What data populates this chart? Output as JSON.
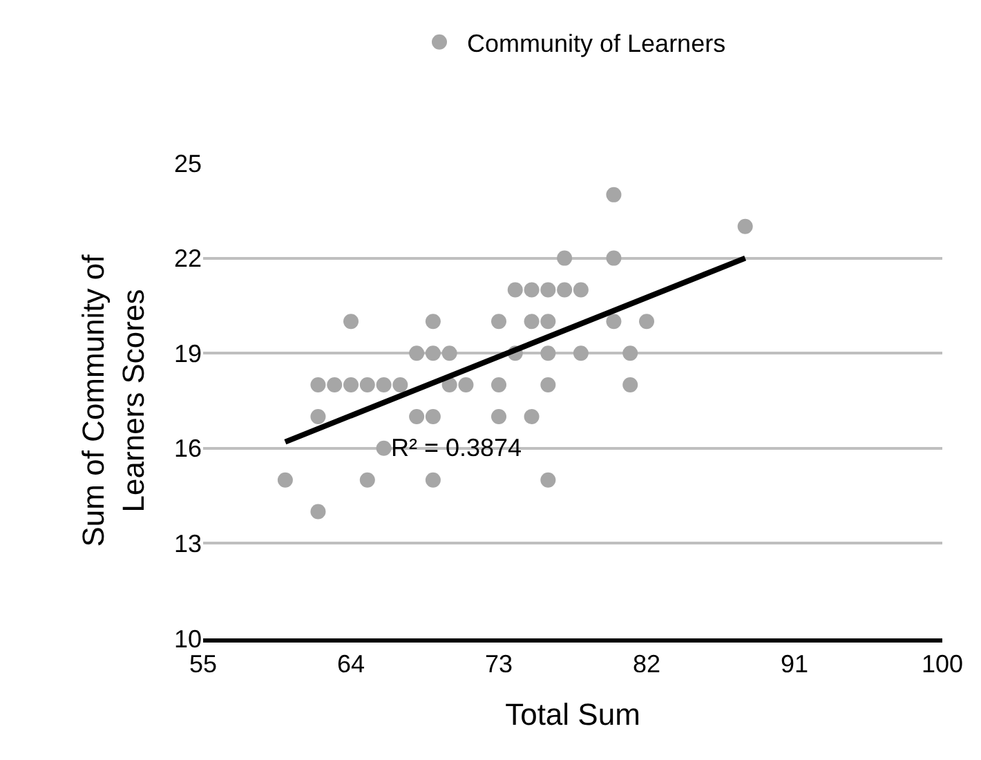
{
  "chart_data": {
    "type": "scatter",
    "xlabel": "Total Sum",
    "ylabel": "Sum of Community of\nLearners Scores",
    "series": [
      {
        "name": "Community of Learners",
        "color": "#a6a6a6",
        "marker": "circle",
        "x": [
          64,
          69,
          73,
          68,
          69,
          70,
          62,
          63,
          64,
          65,
          66,
          67,
          70,
          71,
          73,
          62,
          68,
          69,
          73,
          66,
          60,
          65,
          69,
          62,
          80,
          88,
          77,
          80,
          74,
          75,
          76,
          77,
          78,
          75,
          76,
          80,
          82,
          74,
          76,
          78,
          81,
          76,
          81,
          75,
          76
        ],
        "values": [
          20,
          20,
          20,
          19,
          19,
          19,
          18,
          18,
          18,
          18,
          18,
          18,
          18,
          18,
          18,
          17,
          17,
          17,
          17,
          16,
          15,
          15,
          15,
          14,
          24,
          23,
          22,
          22,
          21,
          21,
          21,
          21,
          21,
          20,
          20,
          20,
          20,
          19,
          19,
          19,
          19,
          18,
          18,
          17,
          15
        ]
      },
      {
        "type": "line",
        "color": "#000000",
        "x": [
          60,
          88
        ],
        "values": [
          16.2,
          22.0
        ]
      }
    ],
    "annotations": [
      "R² = 0.3874"
    ],
    "xlim": [
      55,
      100
    ],
    "xticks": [
      55,
      64,
      73,
      82,
      91,
      100
    ],
    "ylim": [
      10,
      25
    ],
    "yticks": [
      10,
      13,
      16,
      19,
      22,
      25
    ],
    "grid": "y",
    "legend": "top"
  }
}
